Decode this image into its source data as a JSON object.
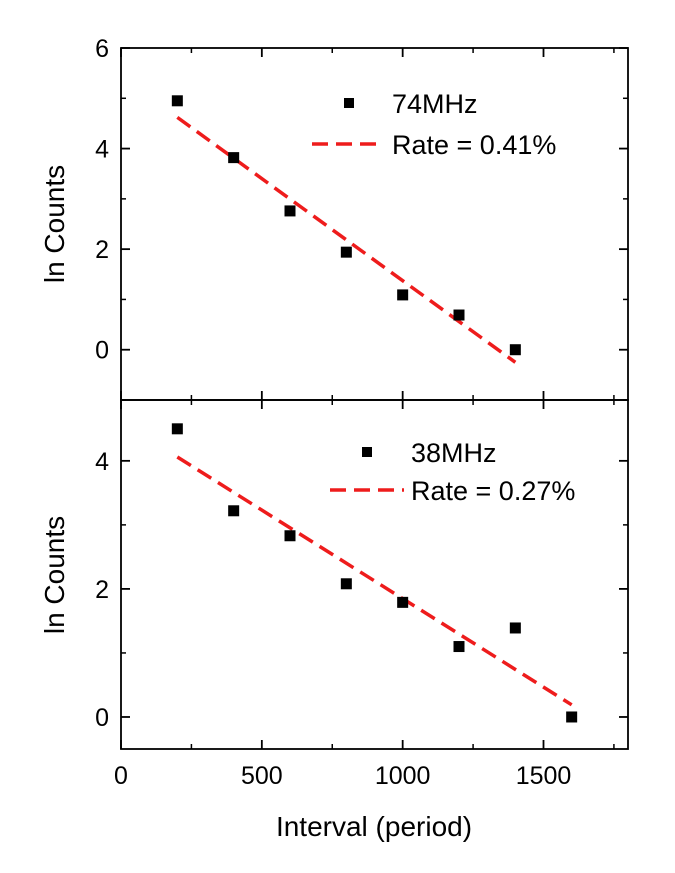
{
  "chart_data": [
    {
      "type": "scatter",
      "panel": "top",
      "ylabel": "ln Counts",
      "xlim": [
        0,
        1800
      ],
      "ylim": [
        -1,
        6
      ],
      "yticks": [
        0,
        2,
        4,
        6
      ],
      "yticks_minor": [
        -1,
        1,
        3,
        5
      ],
      "x_ticklabels_shown": false,
      "grid": false,
      "legend_position": "top-right",
      "series": [
        {
          "name": "74MHz",
          "kind": "points",
          "marker": "square",
          "color": "#000000",
          "x": [
            200,
            400,
            600,
            800,
            1000,
            1200,
            1400
          ],
          "y": [
            4.95,
            3.82,
            2.76,
            1.94,
            1.09,
            0.69,
            0.0
          ]
        },
        {
          "name": "Rate = 0.41%",
          "kind": "fit",
          "style": "dashed",
          "color": "#ee1c1c",
          "x": [
            200,
            1400
          ],
          "y": [
            4.62,
            -0.25
          ]
        }
      ]
    },
    {
      "type": "scatter",
      "panel": "bottom",
      "xlabel": "Interval (period)",
      "ylabel": "ln Counts",
      "xlim": [
        0,
        1800
      ],
      "ylim": [
        -0.5,
        4.95
      ],
      "xticks": [
        0,
        500,
        1000,
        1500
      ],
      "yticks": [
        0,
        2,
        4
      ],
      "yticks_minor": [
        1,
        3
      ],
      "grid": false,
      "legend_position": "top-right",
      "series": [
        {
          "name": "38MHz",
          "kind": "points",
          "marker": "square",
          "color": "#000000",
          "x": [
            200,
            400,
            600,
            800,
            1000,
            1200,
            1400,
            1600
          ],
          "y": [
            4.5,
            3.22,
            2.83,
            2.08,
            1.79,
            1.1,
            1.39,
            0.0
          ]
        },
        {
          "name": "Rate = 0.27%",
          "kind": "fit",
          "style": "dashed",
          "color": "#ee1c1c",
          "x": [
            200,
            1600
          ],
          "y": [
            4.06,
            0.19
          ]
        }
      ]
    }
  ]
}
